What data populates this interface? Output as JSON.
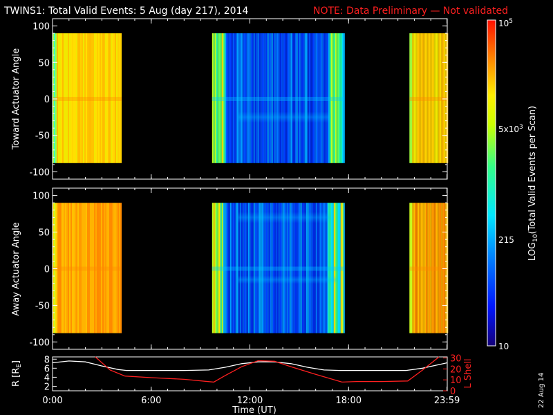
{
  "header": {
    "title": "TWINS1: Total Valid Events:  5 Aug (day 217), 2014",
    "note": "NOTE: Data Preliminary — Not validated",
    "note_color": "#ff2020"
  },
  "panels": {
    "toward": {
      "ylabel": "Toward Actuator Angle"
    },
    "away": {
      "ylabel": "Away Actuator Angle"
    },
    "orbit": {
      "ylabel_left": "R [R",
      "ylabel_left_sub": "E",
      "ylabel_left_end": "]",
      "ylabel_right": "L Shell",
      "ylabel_right_color": "#ff2020"
    }
  },
  "xaxis": {
    "label": "Time (UT)",
    "ticks": [
      "0:00",
      "6:00",
      "12:00",
      "18:00",
      "23:59"
    ]
  },
  "colorbar": {
    "label_prefix": "LOG",
    "label_sub": "10",
    "label_suffix": "(Total Valid Events per Scan)",
    "tick_top": "10",
    "tick_top_sup": "5",
    "tick_mid_high": "5x10",
    "tick_mid_high_sup": "3",
    "tick_mid_low": "215",
    "tick_bottom": "10"
  },
  "footer": {
    "date_stamp": "22 Aug 14"
  },
  "chart_data": [
    {
      "type": "heatmap",
      "name": "toward",
      "ylabel": "Toward Actuator Angle",
      "xlim": [
        0,
        24
      ],
      "ylim": [
        -110,
        110
      ],
      "yticks": [
        -100,
        -50,
        0,
        50,
        100
      ],
      "angle_range": [
        -88,
        90
      ],
      "segments": [
        {
          "start": 0,
          "end": 4.2,
          "level": "high"
        },
        {
          "start": 9.7,
          "end": 17.7,
          "level": "low"
        },
        {
          "start": 21.7,
          "end": 24,
          "level": "high"
        }
      ]
    },
    {
      "type": "heatmap",
      "name": "away",
      "ylabel": "Away Actuator Angle",
      "xlim": [
        0,
        24
      ],
      "ylim": [
        -110,
        110
      ],
      "yticks": [
        -100,
        -50,
        0,
        50,
        100
      ],
      "angle_range": [
        -88,
        90
      ],
      "segments": [
        {
          "start": 0,
          "end": 4.2,
          "level": "high"
        },
        {
          "start": 9.7,
          "end": 17.7,
          "level": "low"
        },
        {
          "start": 21.7,
          "end": 24,
          "level": "high"
        }
      ]
    },
    {
      "type": "line",
      "name": "orbit",
      "xlim": [
        0,
        24
      ],
      "ylim_left": [
        1,
        8.5
      ],
      "yticks_left": [
        2,
        4,
        6,
        8
      ],
      "ylim_right": [
        0,
        31
      ],
      "yticks_right": [
        0,
        10,
        20,
        30
      ],
      "series": [
        {
          "color": "#ffffff",
          "axis": "left",
          "x": [
            0,
            1,
            2,
            3,
            4,
            4.5,
            6,
            8,
            9.5,
            10.5,
            11.5,
            12.5,
            13.5,
            14.5,
            15.5,
            16.5,
            17.5,
            18.5,
            20,
            21.5,
            22.5,
            23.5,
            24
          ],
          "y": [
            7.2,
            7.6,
            7.4,
            6.5,
            5.7,
            5.5,
            5.5,
            5.5,
            5.6,
            6.2,
            7.0,
            7.4,
            7.4,
            7.0,
            6.2,
            5.6,
            5.5,
            5.5,
            5.5,
            5.5,
            6.0,
            6.8,
            7.2
          ]
        },
        {
          "color": "#ff2020",
          "axis": "right",
          "x": [
            2.6,
            3.5,
            4.4,
            6,
            8,
            9.8,
            10.5,
            11.5,
            12.5,
            13.5,
            14.5,
            16,
            17.6,
            18.5,
            20,
            21.6,
            22.5,
            23.5
          ],
          "y": [
            31,
            19,
            13.5,
            12,
            10.5,
            8,
            14,
            22,
            27.5,
            27,
            22,
            15,
            8,
            8.5,
            8.5,
            9,
            19,
            31
          ]
        }
      ]
    }
  ]
}
